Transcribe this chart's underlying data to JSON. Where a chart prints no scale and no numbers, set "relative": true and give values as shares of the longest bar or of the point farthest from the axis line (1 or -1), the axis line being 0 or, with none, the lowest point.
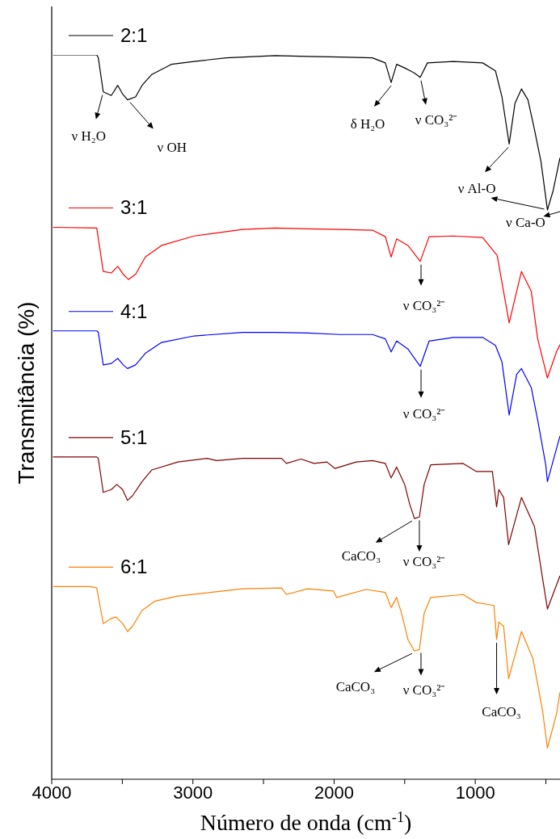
{
  "chart_data": {
    "type": "line",
    "relative": true,
    "xlabel": "Número de onda (cm$^{-1}$)",
    "ylabel": "Transmitância (%)",
    "xlim": [
      4000,
      400
    ],
    "xticks": [
      4000,
      {
        "value": 3500,
        "label": null
      },
      3000,
      {
        "value": 2500,
        "label": null
      },
      2000,
      {
        "value": 1500,
        "label": null
      },
      1000,
      {
        "value": 500,
        "label": null
      }
    ],
    "legend": "left",
    "grid": false,
    "line_style": "solid",
    "series": [
      {
        "name": "2:1",
        "color": "#000000",
        "x": [
          3991,
          3681,
          3670,
          3635,
          3578,
          3532,
          3498,
          3463,
          3406,
          3360,
          3291,
          3153,
          2992,
          2763,
          2418,
          2188,
          1959,
          1729,
          1637,
          1596,
          1557,
          1500,
          1431,
          1390,
          1339,
          1155,
          948,
          857,
          811,
          760,
          719,
          673,
          627,
          581,
          535,
          489,
          448,
          400
        ],
        "values": [
          1.0,
          1.0,
          0.996,
          0.949,
          0.944,
          0.958,
          0.946,
          0.938,
          0.942,
          0.958,
          0.973,
          0.987,
          0.991,
          0.996,
          0.999,
          0.998,
          0.997,
          0.996,
          0.989,
          0.962,
          0.987,
          0.982,
          0.975,
          0.969,
          0.989,
          0.991,
          0.989,
          0.978,
          0.942,
          0.877,
          0.933,
          0.953,
          0.938,
          0.897,
          0.853,
          0.786,
          0.813,
          0.858
        ]
      },
      {
        "name": "3:1",
        "color": "#ff0000",
        "x": [
          3991,
          3681,
          3635,
          3578,
          3532,
          3493,
          3456,
          3406,
          3337,
          3222,
          2992,
          2648,
          2418,
          2188,
          1959,
          1729,
          1637,
          1596,
          1557,
          1477,
          1390,
          1327,
          1155,
          948,
          845,
          760,
          673,
          604,
          558,
          489,
          425,
          400
        ],
        "values": [
          0.762,
          0.761,
          0.701,
          0.699,
          0.708,
          0.697,
          0.69,
          0.697,
          0.721,
          0.737,
          0.75,
          0.759,
          0.761,
          0.76,
          0.759,
          0.758,
          0.749,
          0.721,
          0.746,
          0.737,
          0.715,
          0.749,
          0.75,
          0.748,
          0.723,
          0.63,
          0.701,
          0.674,
          0.608,
          0.554,
          0.59,
          0.6
        ]
      },
      {
        "name": "4:1",
        "color": "#0000ff",
        "x": [
          3991,
          3681,
          3670,
          3635,
          3578,
          3532,
          3493,
          3463,
          3406,
          3337,
          3222,
          2992,
          2648,
          2418,
          2188,
          1959,
          1729,
          1637,
          1596,
          1557,
          1477,
          1390,
          1327,
          1155,
          948,
          857,
          811,
          760,
          707,
          673,
          604,
          558,
          501,
          489,
          400
        ],
        "values": [
          0.619,
          0.619,
          0.617,
          0.572,
          0.574,
          0.581,
          0.572,
          0.567,
          0.572,
          0.588,
          0.603,
          0.612,
          0.617,
          0.617,
          0.616,
          0.614,
          0.614,
          0.608,
          0.59,
          0.605,
          0.594,
          0.57,
          0.605,
          0.61,
          0.61,
          0.599,
          0.576,
          0.503,
          0.559,
          0.567,
          0.541,
          0.496,
          0.434,
          0.411,
          0.474
        ]
      },
      {
        "name": "5:1",
        "color": "#800000",
        "x": [
          3991,
          3681,
          3670,
          3635,
          3578,
          3539,
          3498,
          3463,
          3429,
          3360,
          3291,
          3107,
          2900,
          2832,
          2648,
          2372,
          2338,
          2234,
          2142,
          2051,
          1993,
          1844,
          1729,
          1637,
          1596,
          1557,
          1500,
          1465,
          1431,
          1396,
          1362,
          1316,
          1086,
          994,
          879,
          849,
          833,
          799,
          764,
          673,
          581,
          524,
          489,
          400
        ],
        "values": [
          0.445,
          0.445,
          0.443,
          0.396,
          0.4,
          0.407,
          0.4,
          0.385,
          0.391,
          0.411,
          0.427,
          0.438,
          0.443,
          0.44,
          0.443,
          0.443,
          0.436,
          0.442,
          0.436,
          0.438,
          0.429,
          0.438,
          0.44,
          0.436,
          0.416,
          0.431,
          0.407,
          0.38,
          0.36,
          0.362,
          0.407,
          0.434,
          0.436,
          0.425,
          0.425,
          0.376,
          0.4,
          0.389,
          0.324,
          0.389,
          0.349,
          0.278,
          0.235,
          0.281
        ]
      },
      {
        "name": "6:1",
        "color": "#ff8000",
        "x": [
          3991,
          3727,
          3681,
          3635,
          3578,
          3544,
          3498,
          3463,
          3429,
          3360,
          3268,
          3107,
          2877,
          2648,
          2372,
          2338,
          2188,
          2005,
          1982,
          1775,
          1637,
          1596,
          1557,
          1522,
          1477,
          1431,
          1396,
          1362,
          1316,
          1086,
          994,
          868,
          849,
          833,
          799,
          764,
          673,
          591,
          524,
          489,
          425,
          400
        ],
        "values": [
          0.266,
          0.266,
          0.264,
          0.215,
          0.222,
          0.224,
          0.215,
          0.204,
          0.211,
          0.233,
          0.246,
          0.253,
          0.258,
          0.263,
          0.264,
          0.255,
          0.263,
          0.26,
          0.251,
          0.262,
          0.258,
          0.237,
          0.251,
          0.229,
          0.193,
          0.177,
          0.179,
          0.229,
          0.251,
          0.255,
          0.244,
          0.24,
          0.193,
          0.217,
          0.211,
          0.139,
          0.204,
          0.166,
          0.095,
          0.043,
          0.09,
          0.12
        ]
      }
    ],
    "annotations": [
      {
        "text": "ν H₂O",
        "x": 3635,
        "y": 0.949
      },
      {
        "text": "ν OH",
        "x": 3463,
        "y": 0.938
      },
      {
        "text": "δ H₂O",
        "x": 1596,
        "y": 0.962
      },
      {
        "text": "ν CO₃²⁻",
        "x": 1390,
        "y": 0.969
      },
      {
        "text": "ν Al-O",
        "x": 760,
        "y": 0.877
      },
      {
        "text": "ν Ca-O",
        "x": 489,
        "y": 0.786
      },
      {
        "text": "ν CO₃²⁻",
        "x": 1390,
        "y": 0.715
      },
      {
        "text": "ν CO₃²⁻",
        "x": 1390,
        "y": 0.57
      },
      {
        "text": "CaCO₃",
        "x": 1431,
        "y": 0.36
      },
      {
        "text": "ν CO₃²⁻",
        "x": 1396,
        "y": 0.362
      },
      {
        "text": "CaCO₃",
        "x": 1431,
        "y": 0.177
      },
      {
        "text": "ν CO₃²⁻",
        "x": 1396,
        "y": 0.179
      },
      {
        "text": "CaCO₃",
        "x": 849,
        "y": 0.193
      }
    ]
  }
}
